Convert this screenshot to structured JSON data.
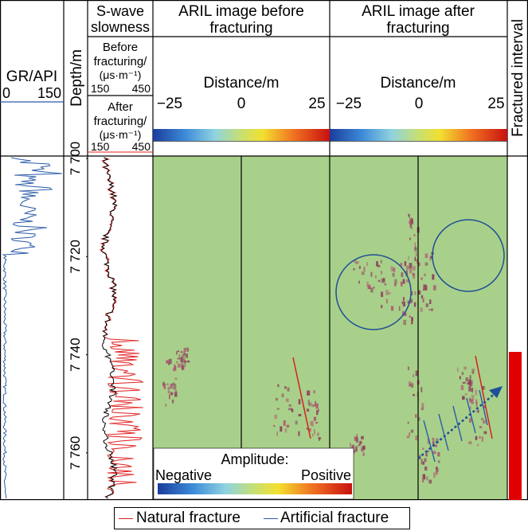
{
  "header": {
    "gr": {
      "title": "GR/API",
      "min": "0",
      "max": "150"
    },
    "depth_title": "Depth/m",
    "swave": {
      "title_line1": "S-wave",
      "title_line2": "slowness",
      "before_line1": "Before",
      "before_line2": "fracturing/",
      "before_unit": "(μs·m⁻¹)",
      "before_min": "150",
      "before_max": "450",
      "after_line1": "After",
      "after_line2": "fracturing/",
      "after_unit": "(μs·m⁻¹)",
      "after_min": "150",
      "after_max": "450"
    },
    "aril_before": {
      "title_line1": "ARIL image before",
      "title_line2": "fracturing",
      "axis_label": "Distance/m",
      "ticks": [
        "−25",
        "0",
        "25"
      ]
    },
    "aril_after": {
      "title_line1": "ARIL image after",
      "title_line2": "fracturing",
      "axis_label": "Distance/m",
      "ticks": [
        "−25",
        "0",
        "25"
      ]
    },
    "fractured_title": "Fractured interval"
  },
  "depth_ticks": [
    "7 700",
    "7 720",
    "7 740",
    "7 760"
  ],
  "amplitude_legend": {
    "title": "Amplitude:",
    "negative": "Negative",
    "positive": "Positive"
  },
  "legend": {
    "natural": "Natural fracture",
    "artificial": "Artificial fracture"
  },
  "colors": {
    "natural_fracture": "#d62020",
    "artificial_fracture": "#2a5aa8",
    "gr_curve": "#2a5aa8",
    "swave_before": "#000000",
    "swave_after": "#e02020",
    "image_background": "#a8d08a",
    "fractured_interval": "#e00000"
  }
}
